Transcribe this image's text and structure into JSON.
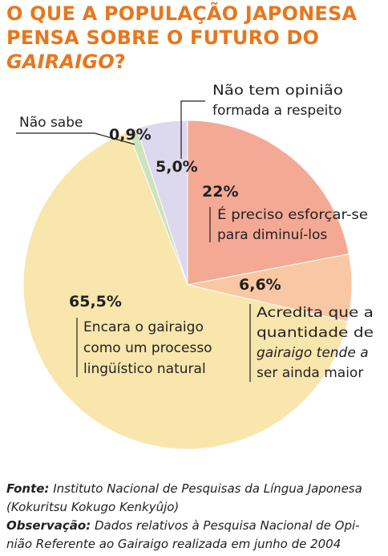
{
  "title": {
    "line1": "O QUE A POPULAÇÃO JAPONESA",
    "line2": "PENSA SOBRE O FUTURO DO",
    "line3_em": "GAIRAIGO",
    "line3_end": "?"
  },
  "chart_data": {
    "type": "pie",
    "title": "O QUE A POPULAÇÃO JAPONESA PENSA SOBRE O FUTURO DO GAIRAIGO?",
    "slices": [
      {
        "label": "É preciso esforçar-se para diminuí-los",
        "value": 22,
        "value_text": "22%",
        "color": "#f4a995",
        "desc": [
          "É preciso esforçar-se",
          "para diminuí-los"
        ]
      },
      {
        "label": "Acredita que a quantidade de gairaigo tende a ser ainda maior",
        "value": 6.6,
        "value_text": "6,6%",
        "color": "#fac7a4",
        "desc": [
          "Acredita que a",
          "quantidade de",
          "gairaigo tende a",
          "ser ainda maior"
        ]
      },
      {
        "label": "Encara o gairaigo como um processo lingüístico natural",
        "value": 65.5,
        "value_text": "65,5%",
        "color": "#f8e6ac",
        "desc": [
          "Encara o gairaigo",
          "como um processo",
          "lingüístico natural"
        ]
      },
      {
        "label": "Não sabe",
        "value": 0.9,
        "value_text": "0,9%",
        "color": "#cde3bc",
        "desc": [
          "Não sabe"
        ]
      },
      {
        "label": "Não tem opinião formada a respeito",
        "value": 5.0,
        "value_text": "5,0%",
        "color": "#dcd9ee",
        "desc": [
          "Não tem opinião",
          "formada a respeito"
        ]
      }
    ]
  },
  "footer": {
    "fonte_label": "Fonte:",
    "fonte_line1": "Instituto Nacional de Pesquisas da Língua Japonesa",
    "fonte_line2": "(Kokuritsu Kokugo Kenkyûjo)",
    "obs_label": "Observação:",
    "obs_line1": "Dados relativos à Pesquisa Nacional de Opi-",
    "obs_line2": "nião Referente ao Gairaigo realizada em junho de 2004"
  }
}
